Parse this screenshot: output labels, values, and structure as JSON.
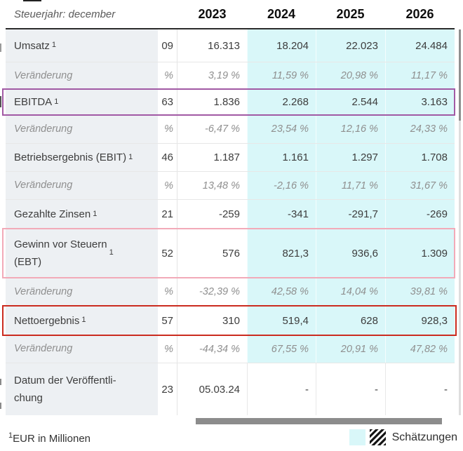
{
  "header": {
    "caption": "Steuerjahr: december",
    "years": [
      "2023",
      "2024",
      "2025",
      "2026"
    ]
  },
  "rows": [
    {
      "label": "Umsatz",
      "sup": "1",
      "values": [
        "09",
        "16.313",
        "18.204",
        "22.023",
        "24.484"
      ]
    },
    {
      "label": "Veränderung",
      "sup": "",
      "values": [
        "%",
        "3,19 %",
        "11,59 %",
        "20,98 %",
        "11,17 %"
      ]
    },
    {
      "label": "EBITDA",
      "sup": "1",
      "values": [
        "63",
        "1.836",
        "2.268",
        "2.544",
        "3.163"
      ],
      "highlight": "purple"
    },
    {
      "label": "Veränderung",
      "sup": "",
      "values": [
        "%",
        "-6,47 %",
        "23,54 %",
        "12,16 %",
        "24,33 %"
      ]
    },
    {
      "label": "Betriebsergebnis (EBIT)",
      "sup": "1",
      "values": [
        "46",
        "1.187",
        "1.161",
        "1.297",
        "1.708"
      ]
    },
    {
      "label": "Veränderung",
      "sup": "",
      "values": [
        "%",
        "13,48 %",
        "-2,16 %",
        "11,71 %",
        "31,67 %"
      ]
    },
    {
      "label": "Gezahlte Zinsen",
      "sup": "1",
      "values": [
        "21",
        "-259",
        "-341",
        "-291,7",
        "-269"
      ]
    },
    {
      "label": "Gewinn vor Steuern\n(EBT)",
      "sup": "1",
      "values": [
        "52",
        "576",
        "821,3",
        "936,6",
        "1.309"
      ],
      "highlight": "pink"
    },
    {
      "label": "Veränderung",
      "sup": "",
      "values": [
        "%",
        "-32,39 %",
        "42,58 %",
        "14,04 %",
        "39,81 %"
      ]
    },
    {
      "label": "Nettoergebnis",
      "sup": "1",
      "values": [
        "57",
        "310",
        "519,4",
        "628",
        "928,3"
      ],
      "highlight": "red"
    },
    {
      "label": "Veränderung",
      "sup": "",
      "values": [
        "%",
        "-44,34 %",
        "67,55 %",
        "20,91 %",
        "47,82 %"
      ]
    },
    {
      "label": "Datum der Veröffentli-\nchung",
      "sup": "",
      "values": [
        "23",
        "05.03.24",
        "-",
        "-",
        "-"
      ]
    }
  ],
  "footer": {
    "footnote_sup": "1",
    "footnote_text": "EUR in Millionen",
    "legend_label": "Schätzungen"
  },
  "colors": {
    "estimate_bg": "#d9f7f9",
    "label_column_bg": "#edf0f3",
    "highlight_purple": "#a159a4",
    "highlight_pink": "#f2aab8",
    "highlight_red": "#cb2b1f"
  }
}
